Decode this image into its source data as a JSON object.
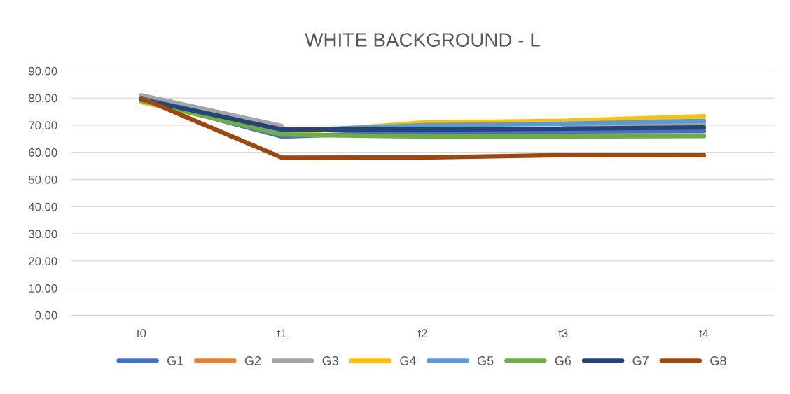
{
  "chart_data": {
    "type": "line",
    "title": "WHITE BACKGROUND - L",
    "categories": [
      "t0",
      "t1",
      "t2",
      "t3",
      "t4"
    ],
    "series": [
      {
        "name": "G1",
        "color": "#4472c4",
        "values": [
          79.5,
          65.8,
          67.5,
          67.7,
          67.8
        ]
      },
      {
        "name": "G2",
        "color": "#ed7d31",
        "values": [
          null,
          null,
          null,
          null,
          null
        ]
      },
      {
        "name": "G3",
        "color": "#a5a5a5",
        "values": [
          81.0,
          69.7,
          null,
          69.8,
          70.5
        ]
      },
      {
        "name": "G4",
        "color": "#ffc000",
        "values": [
          78.5,
          67.0,
          71.0,
          71.6,
          73.3
        ]
      },
      {
        "name": "G5",
        "color": "#5b9bd5",
        "values": [
          80.0,
          68.0,
          70.0,
          70.5,
          71.6
        ]
      },
      {
        "name": "G6",
        "color": "#70ad47",
        "values": [
          79.0,
          66.5,
          65.8,
          65.8,
          66.0
        ]
      },
      {
        "name": "G7",
        "color": "#264478",
        "values": [
          79.5,
          68.4,
          68.4,
          68.7,
          69.2
        ]
      },
      {
        "name": "G8",
        "color": "#9e480e",
        "values": [
          80.0,
          58.0,
          58.1,
          59.0,
          58.9
        ]
      }
    ],
    "ylim": [
      0,
      90
    ],
    "yticks": [
      {
        "value": 0,
        "label": "0.00"
      },
      {
        "value": 10,
        "label": "10.00"
      },
      {
        "value": 20,
        "label": "20.00"
      },
      {
        "value": 30,
        "label": "30.00"
      },
      {
        "value": 40,
        "label": "40.00"
      },
      {
        "value": 50,
        "label": "50.00"
      },
      {
        "value": 60,
        "label": "60.00"
      },
      {
        "value": 70,
        "label": "70.00"
      },
      {
        "value": 80,
        "label": "80.00"
      },
      {
        "value": 90,
        "label": "90.00"
      }
    ],
    "grid": "y",
    "legend": "bottom",
    "marker": "none",
    "line_style": "solid"
  }
}
